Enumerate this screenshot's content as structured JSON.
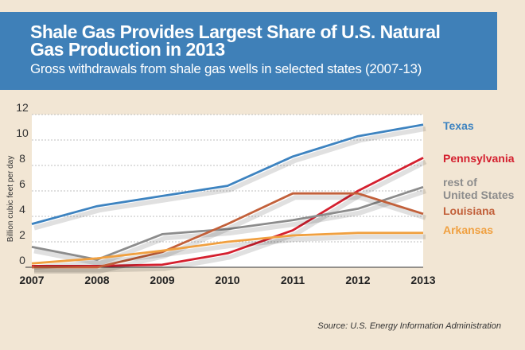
{
  "chart_data": {
    "type": "line",
    "title": "Shale Gas Provides Largest Share of U.S. Natural Gas Production in 2013",
    "subtitle": "Gross withdrawals from shale gas wells in selected states (2007-13)",
    "ylabel": "Billion cubic feet per day",
    "xlabel": "",
    "ylim": [
      0,
      12
    ],
    "yticks": [
      "0",
      "2",
      "4",
      "6",
      "8",
      "10",
      "12"
    ],
    "x": [
      "2007",
      "2008",
      "2009",
      "2010",
      "2011",
      "2012",
      "2013"
    ],
    "grid": true,
    "legend": "right, labels at line ends",
    "series": [
      {
        "name": "Texas",
        "color": "#3d83c0",
        "values": [
          3.4,
          4.8,
          5.6,
          6.4,
          8.7,
          10.3,
          11.2
        ]
      },
      {
        "name": "Pennsylvania",
        "color": "#d4202f",
        "values": [
          0.1,
          0.1,
          0.2,
          1.1,
          2.9,
          6.0,
          8.6
        ]
      },
      {
        "name": "rest of United States",
        "color": "#8c8c8c",
        "values": [
          1.6,
          0.6,
          2.6,
          3.0,
          3.7,
          4.6,
          6.3
        ]
      },
      {
        "name": "Louisiana",
        "color": "#c2603a",
        "values": [
          0.0,
          0.0,
          1.2,
          3.4,
          5.8,
          5.8,
          4.2
        ]
      },
      {
        "name": "Arkansas",
        "color": "#f0a040",
        "values": [
          0.3,
          0.7,
          1.3,
          2.0,
          2.5,
          2.7,
          2.7
        ]
      }
    ]
  },
  "source": "Source: U.S. Energy Information Administration"
}
